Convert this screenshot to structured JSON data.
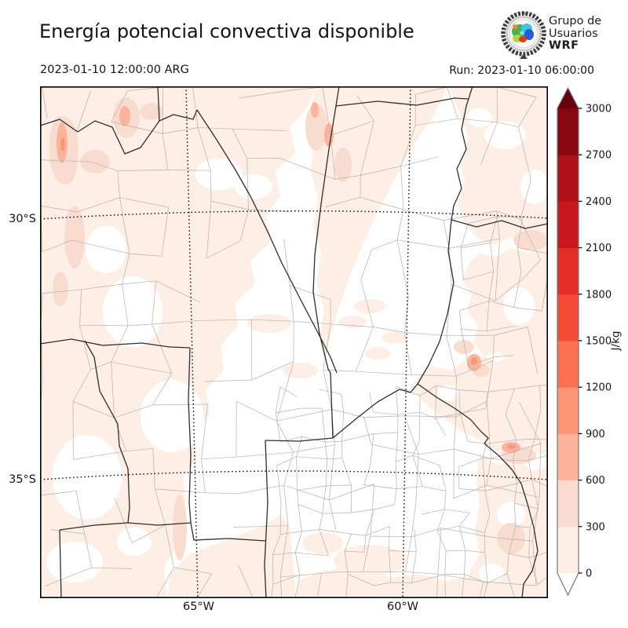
{
  "header": {
    "title": "Energía potencial convectiva disponible",
    "valid_time": "2023-01-10 12:00:00 ARG",
    "run_label": "Run: 2023-01-10 06:00:00",
    "logo_text": {
      "line1": "Grupo de",
      "line2": "Usuarios",
      "line3": "WRF"
    }
  },
  "map": {
    "x_tick_labels": [
      "65°W",
      "60°W"
    ],
    "y_tick_labels": [
      "30°S",
      "35°S"
    ]
  },
  "colorbar": {
    "units": "J/kg",
    "tick_labels": [
      "0",
      "300",
      "600",
      "900",
      "1200",
      "1500",
      "1800",
      "2100",
      "2400",
      "2700",
      "3000"
    ],
    "segment_colors_bottom_to_top": [
      "#fdeee6",
      "#f9dcd0",
      "#fbb49b",
      "#fc9576",
      "#fc7251",
      "#f44b36",
      "#e32f27",
      "#c9181d",
      "#ad1117",
      "#870711"
    ],
    "over_arrow_color": "#67000d",
    "under_arrow_color": "#ffffff",
    "shade_bin_colors": [
      "#fdeee6",
      "#f9dcd0",
      "#fbb49b",
      "#fc9576"
    ]
  },
  "chart_data": {
    "type": "heatmap",
    "title": "Energía potencial convectiva disponible",
    "variable_units": "J/kg",
    "valid_time": "2023-01-10 12:00:00 ARG",
    "run": "2023-01-10 06:00:00",
    "colorbar_levels": [
      0,
      300,
      600,
      900,
      1200,
      1500,
      1800,
      2100,
      2400,
      2700,
      3000
    ],
    "colorbar_colors_low_to_high": [
      "#fdeee6",
      "#f9dcd0",
      "#fbb49b",
      "#fc9576",
      "#fc7251",
      "#f44b36",
      "#e32f27",
      "#c9181d",
      "#ad1117",
      "#870711"
    ],
    "x_axis_ticks": [
      "65°W",
      "60°W"
    ],
    "y_axis_ticks": [
      "30°S",
      "35°S"
    ],
    "field_summary": "CAPE shading mostly in the 0-300 and 300-600 J/kg bins over the northwest, southwest and Río de la Plata coastal areas; large unshaded (near-zero) region over the central provinces"
  }
}
